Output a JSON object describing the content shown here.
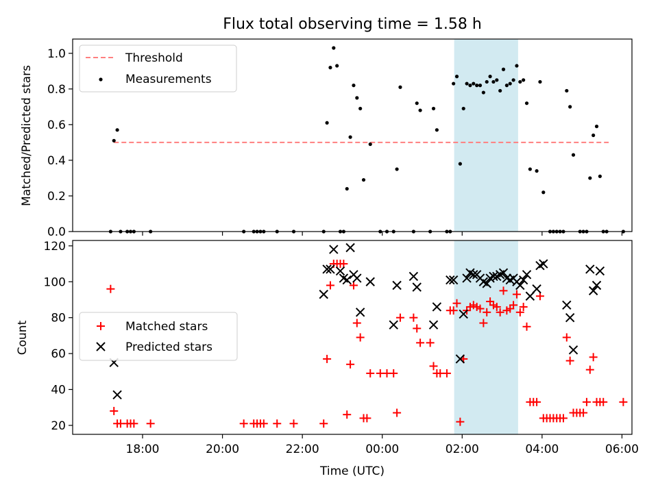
{
  "figure": {
    "title": "Flux total observing time = 1.58 h",
    "xlabel": "Time (UTC)"
  },
  "colors": {
    "threshold": "#ff7f7f",
    "measurements": "#000000",
    "matched": "#ff0000",
    "predicted": "#000000",
    "band": "#add8e6"
  },
  "chart_data": [
    {
      "type": "scatter",
      "panel": "top",
      "ylabel": "Matched/Predicted stars",
      "xlim": [
        "16:15",
        "06:15"
      ],
      "ylim": [
        0,
        1.08
      ],
      "x_ticks": [
        "18:00",
        "20:00",
        "22:00",
        "00:00",
        "02:00",
        "04:00",
        "06:00"
      ],
      "y_ticks": [
        "0.0",
        "0.2",
        "0.4",
        "0.6",
        "0.8",
        "1.0"
      ],
      "legend_position": "upper-left",
      "legend": [
        "Threshold",
        "Measurements"
      ],
      "highlight_band": [
        "01:48",
        "03:24"
      ],
      "threshold": {
        "name": "Threshold",
        "x": [
          "17:17",
          "05:40"
        ],
        "y": 0.5
      },
      "series": [
        {
          "name": "Measurements",
          "points": [
            [
              "17:12",
              0.0
            ],
            [
              "17:17",
              0.51
            ],
            [
              "17:22",
              0.57
            ],
            [
              "17:27",
              0.0
            ],
            [
              "17:37",
              0.0
            ],
            [
              "17:42",
              0.0
            ],
            [
              "17:47",
              0.0
            ],
            [
              "18:12",
              0.0
            ],
            [
              "20:32",
              0.0
            ],
            [
              "20:47",
              0.0
            ],
            [
              "20:52",
              0.0
            ],
            [
              "20:57",
              0.0
            ],
            [
              "21:02",
              0.0
            ],
            [
              "21:22",
              0.0
            ],
            [
              "21:47",
              0.0
            ],
            [
              "22:32",
              0.0
            ],
            [
              "22:37",
              0.61
            ],
            [
              "22:42",
              0.92
            ],
            [
              "22:47",
              1.03
            ],
            [
              "22:52",
              0.93
            ],
            [
              "22:57",
              0.0
            ],
            [
              "23:02",
              0.0
            ],
            [
              "23:07",
              0.24
            ],
            [
              "23:12",
              0.53
            ],
            [
              "23:17",
              0.82
            ],
            [
              "23:22",
              0.75
            ],
            [
              "23:27",
              0.69
            ],
            [
              "23:32",
              0.29
            ],
            [
              "23:42",
              0.49
            ],
            [
              "23:57",
              0.0
            ],
            [
              "24:07",
              0.0
            ],
            [
              "24:17",
              0.0
            ],
            [
              "24:22",
              0.35
            ],
            [
              "24:27",
              0.81
            ],
            [
              "24:47",
              0.0
            ],
            [
              "24:52",
              0.72
            ],
            [
              "24:57",
              0.68
            ],
            [
              "25:12",
              0.0
            ],
            [
              "25:17",
              0.69
            ],
            [
              "25:22",
              0.57
            ],
            [
              "25:37",
              0.0
            ],
            [
              "25:42",
              0.0
            ],
            [
              "25:47",
              0.83
            ],
            [
              "25:52",
              0.87
            ],
            [
              "25:57",
              0.38
            ],
            [
              "26:02",
              0.69
            ],
            [
              "26:07",
              0.83
            ],
            [
              "26:12",
              0.82
            ],
            [
              "26:17",
              0.83
            ],
            [
              "26:22",
              0.82
            ],
            [
              "26:27",
              0.82
            ],
            [
              "26:32",
              0.78
            ],
            [
              "26:37",
              0.84
            ],
            [
              "26:42",
              0.87
            ],
            [
              "26:47",
              0.84
            ],
            [
              "26:52",
              0.85
            ],
            [
              "26:57",
              0.79
            ],
            [
              "27:02",
              0.91
            ],
            [
              "27:07",
              0.82
            ],
            [
              "27:12",
              0.83
            ],
            [
              "27:17",
              0.85
            ],
            [
              "27:22",
              0.93
            ],
            [
              "27:27",
              0.84
            ],
            [
              "27:32",
              0.85
            ],
            [
              "27:37",
              0.72
            ],
            [
              "27:42",
              0.35
            ],
            [
              "27:52",
              0.34
            ],
            [
              "27:57",
              0.84
            ],
            [
              "28:02",
              0.22
            ],
            [
              "28:12",
              0.0
            ],
            [
              "28:17",
              0.0
            ],
            [
              "28:22",
              0.0
            ],
            [
              "28:27",
              0.0
            ],
            [
              "28:32",
              0.0
            ],
            [
              "28:37",
              0.79
            ],
            [
              "28:42",
              0.7
            ],
            [
              "28:47",
              0.43
            ],
            [
              "28:57",
              0.0
            ],
            [
              "29:02",
              0.0
            ],
            [
              "29:07",
              0.0
            ],
            [
              "29:12",
              0.3
            ],
            [
              "29:17",
              0.54
            ],
            [
              "29:22",
              0.59
            ],
            [
              "29:27",
              0.31
            ],
            [
              "29:32",
              0.0
            ],
            [
              "29:37",
              0.0
            ],
            [
              "30:02",
              0.0
            ]
          ]
        }
      ]
    },
    {
      "type": "scatter",
      "panel": "bottom",
      "ylabel": "Count",
      "xlim": [
        "16:15",
        "06:15"
      ],
      "ylim": [
        15,
        123
      ],
      "x_ticks": [
        "18:00",
        "20:00",
        "22:00",
        "00:00",
        "02:00",
        "04:00",
        "06:00"
      ],
      "y_ticks": [
        "20",
        "40",
        "60",
        "80",
        "100",
        "120"
      ],
      "legend_position": "center-left",
      "legend": [
        "Matched stars",
        "Predicted stars"
      ],
      "highlight_band": [
        "01:48",
        "03:24"
      ],
      "series": [
        {
          "name": "Matched stars",
          "marker": "plus",
          "points": [
            [
              "17:12",
              96
            ],
            [
              "17:17",
              28
            ],
            [
              "17:22",
              21
            ],
            [
              "17:27",
              21
            ],
            [
              "17:37",
              21
            ],
            [
              "17:42",
              21
            ],
            [
              "17:47",
              21
            ],
            [
              "18:12",
              21
            ],
            [
              "20:32",
              21
            ],
            [
              "20:47",
              21
            ],
            [
              "20:52",
              21
            ],
            [
              "20:57",
              21
            ],
            [
              "21:02",
              21
            ],
            [
              "21:22",
              21
            ],
            [
              "21:47",
              21
            ],
            [
              "22:32",
              21
            ],
            [
              "22:37",
              57
            ],
            [
              "22:42",
              98
            ],
            [
              "22:47",
              110
            ],
            [
              "22:52",
              110
            ],
            [
              "22:57",
              110
            ],
            [
              "23:02",
              110
            ],
            [
              "23:07",
              26
            ],
            [
              "23:12",
              54
            ],
            [
              "23:17",
              98
            ],
            [
              "23:22",
              77
            ],
            [
              "23:27",
              69
            ],
            [
              "23:32",
              24
            ],
            [
              "23:37",
              24
            ],
            [
              "23:42",
              49
            ],
            [
              "23:57",
              49
            ],
            [
              "24:07",
              49
            ],
            [
              "24:17",
              49
            ],
            [
              "24:22",
              27
            ],
            [
              "24:27",
              80
            ],
            [
              "24:47",
              80
            ],
            [
              "24:52",
              74
            ],
            [
              "24:57",
              66
            ],
            [
              "25:12",
              66
            ],
            [
              "25:17",
              53
            ],
            [
              "25:22",
              49
            ],
            [
              "25:27",
              49
            ],
            [
              "25:37",
              49
            ],
            [
              "25:42",
              84
            ],
            [
              "25:47",
              84
            ],
            [
              "25:52",
              88
            ],
            [
              "25:57",
              22
            ],
            [
              "26:02",
              57
            ],
            [
              "26:07",
              84
            ],
            [
              "26:12",
              86
            ],
            [
              "26:17",
              87
            ],
            [
              "26:22",
              86
            ],
            [
              "26:27",
              85
            ],
            [
              "26:32",
              77
            ],
            [
              "26:37",
              83
            ],
            [
              "26:42",
              89
            ],
            [
              "26:47",
              87
            ],
            [
              "26:52",
              86
            ],
            [
              "26:57",
              83
            ],
            [
              "27:02",
              95
            ],
            [
              "27:07",
              84
            ],
            [
              "27:12",
              85
            ],
            [
              "27:17",
              87
            ],
            [
              "27:22",
              93
            ],
            [
              "27:27",
              83
            ],
            [
              "27:32",
              86
            ],
            [
              "27:37",
              75
            ],
            [
              "27:42",
              33
            ],
            [
              "27:47",
              33
            ],
            [
              "27:52",
              33
            ],
            [
              "27:57",
              92
            ],
            [
              "28:02",
              24
            ],
            [
              "28:07",
              24
            ],
            [
              "28:12",
              24
            ],
            [
              "28:17",
              24
            ],
            [
              "28:22",
              24
            ],
            [
              "28:27",
              24
            ],
            [
              "28:32",
              24
            ],
            [
              "28:37",
              69
            ],
            [
              "28:42",
              56
            ],
            [
              "28:47",
              27
            ],
            [
              "28:52",
              27
            ],
            [
              "28:57",
              27
            ],
            [
              "29:02",
              27
            ],
            [
              "29:07",
              33
            ],
            [
              "29:12",
              51
            ],
            [
              "29:17",
              58
            ],
            [
              "29:22",
              33
            ],
            [
              "29:27",
              33
            ],
            [
              "29:32",
              33
            ],
            [
              "30:02",
              33
            ]
          ]
        },
        {
          "name": "Predicted stars",
          "marker": "x",
          "points": [
            [
              "17:17",
              55
            ],
            [
              "17:22",
              37
            ],
            [
              "22:32",
              93
            ],
            [
              "22:37",
              107
            ],
            [
              "22:42",
              107
            ],
            [
              "22:47",
              118
            ],
            [
              "22:57",
              106
            ],
            [
              "23:02",
              102
            ],
            [
              "23:07",
              101
            ],
            [
              "23:12",
              119
            ],
            [
              "23:17",
              104
            ],
            [
              "23:22",
              102
            ],
            [
              "23:27",
              83
            ],
            [
              "23:42",
              100
            ],
            [
              "24:17",
              76
            ],
            [
              "24:22",
              98
            ],
            [
              "24:47",
              103
            ],
            [
              "24:52",
              97
            ],
            [
              "25:17",
              76
            ],
            [
              "25:22",
              86
            ],
            [
              "25:42",
              101
            ],
            [
              "25:47",
              101
            ],
            [
              "25:57",
              57
            ],
            [
              "26:02",
              82
            ],
            [
              "26:07",
              102
            ],
            [
              "26:12",
              105
            ],
            [
              "26:17",
              104
            ],
            [
              "26:22",
              104
            ],
            [
              "26:27",
              102
            ],
            [
              "26:32",
              100
            ],
            [
              "26:37",
              99
            ],
            [
              "26:42",
              102
            ],
            [
              "26:47",
              103
            ],
            [
              "26:52",
              103
            ],
            [
              "26:57",
              104
            ],
            [
              "27:02",
              105
            ],
            [
              "27:07",
              102
            ],
            [
              "27:12",
              101
            ],
            [
              "27:17",
              102
            ],
            [
              "27:22",
              100
            ],
            [
              "27:27",
              98
            ],
            [
              "27:32",
              101
            ],
            [
              "27:37",
              104
            ],
            [
              "27:42",
              92
            ],
            [
              "27:52",
              96
            ],
            [
              "27:57",
              109
            ],
            [
              "28:02",
              110
            ],
            [
              "28:37",
              87
            ],
            [
              "28:42",
              80
            ],
            [
              "28:47",
              62
            ],
            [
              "29:12",
              107
            ],
            [
              "29:17",
              95
            ],
            [
              "29:22",
              98
            ],
            [
              "29:27",
              106
            ]
          ]
        }
      ]
    }
  ]
}
